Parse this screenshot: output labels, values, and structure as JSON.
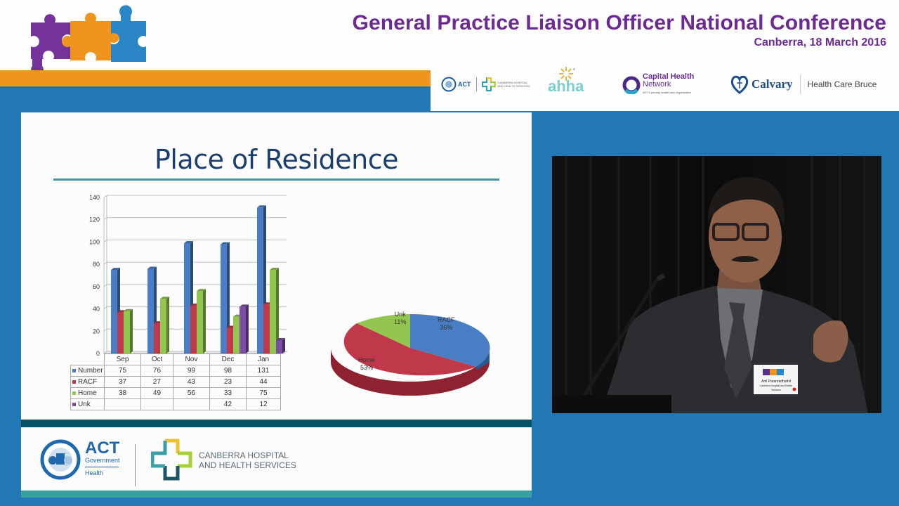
{
  "header": {
    "conference_title": "General Practice Liaison Officer National Conference",
    "location_date": "Canberra, 18 March 2016",
    "colors": {
      "purple": "#6c2b91",
      "orange": "#ef951f",
      "blue": "#2178b5"
    },
    "sponsor_logos": [
      {
        "name": "ACT Government Health",
        "text": "ACT"
      },
      {
        "name": "Canberra Hospital and Health Services",
        "text": "CANBERRA HOSPITAL AND HEALTH SERVICES"
      },
      {
        "name": "ahha",
        "text": "ahha"
      },
      {
        "name": "Capital Health Network",
        "text": "Capital Health",
        "text2": "Network",
        "tagline": "ACT's primary health care organisation"
      },
      {
        "name": "Calvary",
        "text": "Calvary"
      },
      {
        "name": "Health Care Bruce",
        "text": "Health Care Bruce"
      }
    ]
  },
  "slide": {
    "title": "Place of Residence",
    "footer": {
      "act_logo": {
        "line1": "ACT",
        "line2": "Government",
        "line3": "Health"
      },
      "chhs_logo": {
        "line1": "CANBERRA HOSPITAL",
        "line2": "AND HEALTH SERVICES"
      }
    }
  },
  "speaker": {
    "badge_name": "Anil Paramadhathil",
    "badge_org": "Canberra Hospital and Health Services"
  },
  "chart_data": [
    {
      "type": "bar",
      "title": "",
      "categories": [
        "Sep",
        "Oct",
        "Nov",
        "Dec",
        "Jan"
      ],
      "series": [
        {
          "name": "Number",
          "color": "#4a7ec4",
          "values": [
            75,
            76,
            99,
            98,
            131
          ]
        },
        {
          "name": "RACF",
          "color": "#c0394a",
          "values": [
            37,
            27,
            43,
            23,
            44
          ]
        },
        {
          "name": "Home",
          "color": "#92c64f",
          "values": [
            38,
            49,
            56,
            33,
            75
          ]
        },
        {
          "name": "Unk",
          "color": "#7a4fa3",
          "values": [
            null,
            null,
            null,
            42,
            12
          ]
        }
      ],
      "yticks": [
        0,
        20,
        40,
        60,
        80,
        100,
        120,
        140
      ],
      "ylim": [
        0,
        140
      ],
      "grid": true,
      "legend_position": "data-table",
      "xlabel": "",
      "ylabel": ""
    },
    {
      "type": "pie",
      "title": "",
      "slices": [
        {
          "label": "RACF",
          "value": 36,
          "text": "36%",
          "color": "#4a7ec4"
        },
        {
          "label": "Home",
          "value": 53,
          "text": "53%",
          "color": "#c0394a"
        },
        {
          "label": "Unk",
          "value": 11,
          "text": "11%",
          "color": "#92c64f"
        }
      ]
    }
  ]
}
